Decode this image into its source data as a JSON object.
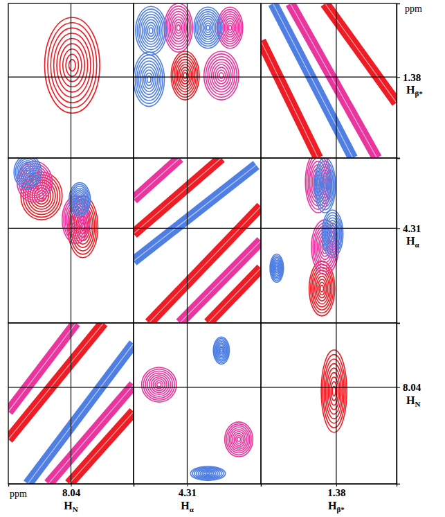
{
  "chart_data": {
    "type": "contour",
    "unit": "ppm",
    "columns": [
      {
        "xlim": [
          8.14,
          7.94
        ],
        "xticks": [
          8.04
        ],
        "label": {
          "text": "H",
          "sub": "N"
        }
      },
      {
        "xlim": [
          4.39,
          4.2
        ],
        "xticks": [
          4.31
        ],
        "label": {
          "text": "H",
          "sub": "α"
        }
      },
      {
        "xlim": [
          1.48,
          1.3
        ],
        "xticks": [
          1.38
        ],
        "label": {
          "text": "H",
          "sub": "β*"
        }
      }
    ],
    "rows": [
      {
        "ylim": [
          1.28,
          1.49
        ],
        "yticks": [
          1.38
        ],
        "label": {
          "text": "H",
          "sub": "β*"
        }
      },
      {
        "ylim": [
          4.21,
          4.445
        ],
        "yticks": [
          4.31
        ],
        "label": {
          "text": "H",
          "sub": "α"
        }
      },
      {
        "ylim": [
          7.94,
          8.19
        ],
        "yticks": [
          8.04
        ],
        "label": {
          "text": "H",
          "sub": "N"
        }
      }
    ],
    "series": [
      {
        "color": "#ee1c24",
        "peaks": [
          {
            "panel": [
              0,
              0
            ],
            "x": 8.038,
            "y": 1.364,
            "width_x": 0.044,
            "width_y": 0.065
          },
          {
            "panel": [
              0,
              1
            ],
            "x": 4.313,
            "y": 1.378,
            "width_x": 0.021,
            "width_y": 0.033
          },
          {
            "panel": [
              1,
              0
            ],
            "x": 8.087,
            "y": 4.264,
            "width_x": 0.033,
            "width_y": 0.034
          },
          {
            "panel": [
              1,
              0
            ],
            "x": 8.021,
            "y": 4.308,
            "width_x": 0.024,
            "width_y": 0.044
          },
          {
            "panel": [
              1,
              2
            ],
            "x": 1.399,
            "y": 4.396,
            "width_x": 0.017,
            "width_y": 0.039
          },
          {
            "panel": [
              2,
              2
            ],
            "x": 1.383,
            "y": 8.046,
            "width_x": 0.017,
            "width_y": 0.064
          }
        ],
        "bands": [
          {
            "panel": [
              0,
              2
            ],
            "x": [
              1.48,
              1.404
            ],
            "y": [
              1.331,
              1.49
            ]
          },
          {
            "panel": [
              0,
              2
            ],
            "x": [
              1.395,
              1.3
            ],
            "y": [
              1.28,
              1.415
            ]
          },
          {
            "panel": [
              1,
              1
            ],
            "x": [
              4.39,
              4.259
            ],
            "y": [
              4.318,
              4.21
            ]
          },
          {
            "panel": [
              1,
              1
            ],
            "x": [
              4.367,
              4.2
            ],
            "y": [
              4.445,
              4.279
            ]
          },
          {
            "panel": [
              1,
              1
            ],
            "x": [
              4.279,
              4.2
            ],
            "y": [
              4.445,
              4.367
            ]
          },
          {
            "panel": [
              2,
              0
            ],
            "x": [
              8.14,
              7.988
            ],
            "y": [
              8.121,
              7.94
            ]
          },
          {
            "panel": [
              2,
              0
            ],
            "x": [
              8.043,
              7.94
            ],
            "y": [
              8.19,
              8.078
            ]
          }
        ]
      },
      {
        "color": "#e8369e",
        "peaks": [
          {
            "panel": [
              0,
              1
            ],
            "x": 4.323,
            "y": 1.313,
            "width_x": 0.021,
            "width_y": 0.033
          },
          {
            "panel": [
              0,
              1
            ],
            "x": 4.246,
            "y": 1.313,
            "width_x": 0.019,
            "width_y": 0.028
          },
          {
            "panel": [
              0,
              1
            ],
            "x": 4.259,
            "y": 1.378,
            "width_x": 0.026,
            "width_y": 0.033
          },
          {
            "panel": [
              1,
              0
            ],
            "x": 8.098,
            "y": 4.244,
            "width_x": 0.028,
            "width_y": 0.029
          },
          {
            "panel": [
              1,
              0
            ],
            "x": 8.032,
            "y": 4.298,
            "width_x": 0.022,
            "width_y": 0.034
          },
          {
            "panel": [
              1,
              2
            ],
            "x": 1.404,
            "y": 4.244,
            "width_x": 0.017,
            "width_y": 0.044
          },
          {
            "panel": [
              1,
              2
            ],
            "x": 1.395,
            "y": 4.337,
            "width_x": 0.018,
            "width_y": 0.039
          },
          {
            "panel": [
              2,
              1
            ],
            "x": 4.352,
            "y": 8.036,
            "width_x": 0.026,
            "width_y": 0.027
          },
          {
            "panel": [
              2,
              1
            ],
            "x": 4.233,
            "y": 8.121,
            "width_x": 0.021,
            "width_y": 0.027
          }
        ],
        "bands": [
          {
            "panel": [
              0,
              2
            ],
            "x": [
              1.441,
              1.326
            ],
            "y": [
              1.28,
              1.49
            ]
          },
          {
            "panel": [
              1,
              1
            ],
            "x": [
              4.39,
              4.321
            ],
            "y": [
              4.269,
              4.21
            ]
          },
          {
            "panel": [
              1,
              1
            ],
            "x": [
              4.321,
              4.2
            ],
            "y": [
              4.445,
              4.328
            ]
          },
          {
            "panel": [
              2,
              0
            ],
            "x": [
              8.14,
              8.032
            ],
            "y": [
              8.078,
              7.94
            ]
          },
          {
            "panel": [
              2,
              0
            ],
            "x": [
              8.076,
              7.94
            ],
            "y": [
              8.19,
              8.036
            ]
          }
        ]
      },
      {
        "color": "#4f7fe3",
        "peaks": [
          {
            "panel": [
              0,
              1
            ],
            "x": 4.364,
            "y": 1.317,
            "width_x": 0.023,
            "width_y": 0.033
          },
          {
            "panel": [
              0,
              1
            ],
            "x": 4.279,
            "y": 1.313,
            "width_x": 0.021,
            "width_y": 0.028
          },
          {
            "panel": [
              0,
              1
            ],
            "x": 4.367,
            "y": 1.383,
            "width_x": 0.023,
            "width_y": 0.037
          },
          {
            "panel": [
              1,
              0
            ],
            "x": 8.109,
            "y": 4.23,
            "width_x": 0.022,
            "width_y": 0.024
          },
          {
            "panel": [
              1,
              0
            ],
            "x": 8.026,
            "y": 4.269,
            "width_x": 0.017,
            "width_y": 0.024
          },
          {
            "panel": [
              1,
              2
            ],
            "x": 1.395,
            "y": 4.249,
            "width_x": 0.014,
            "width_y": 0.039
          },
          {
            "panel": [
              1,
              2
            ],
            "x": 1.385,
            "y": 4.318,
            "width_x": 0.014,
            "width_y": 0.034
          },
          {
            "panel": [
              1,
              2
            ],
            "x": 1.459,
            "y": 4.367,
            "width_x": 0.009,
            "width_y": 0.02
          },
          {
            "panel": [
              2,
              1
            ],
            "x": 4.259,
            "y": 7.983,
            "width_x": 0.012,
            "width_y": 0.021
          },
          {
            "panel": [
              2,
              1
            ],
            "x": 4.279,
            "y": 8.174,
            "width_x": 0.026,
            "width_y": 0.011
          }
        ],
        "bands": [
          {
            "panel": [
              0,
              2
            ],
            "x": [
              1.464,
              1.358
            ],
            "y": [
              1.28,
              1.49
            ]
          },
          {
            "panel": [
              1,
              1
            ],
            "x": [
              4.39,
              4.207
            ],
            "y": [
              4.357,
              4.22
            ]
          },
          {
            "panel": [
              2,
              0
            ],
            "x": [
              8.109,
              7.94
            ],
            "y": [
              8.19,
              7.972
            ]
          }
        ]
      }
    ]
  }
}
